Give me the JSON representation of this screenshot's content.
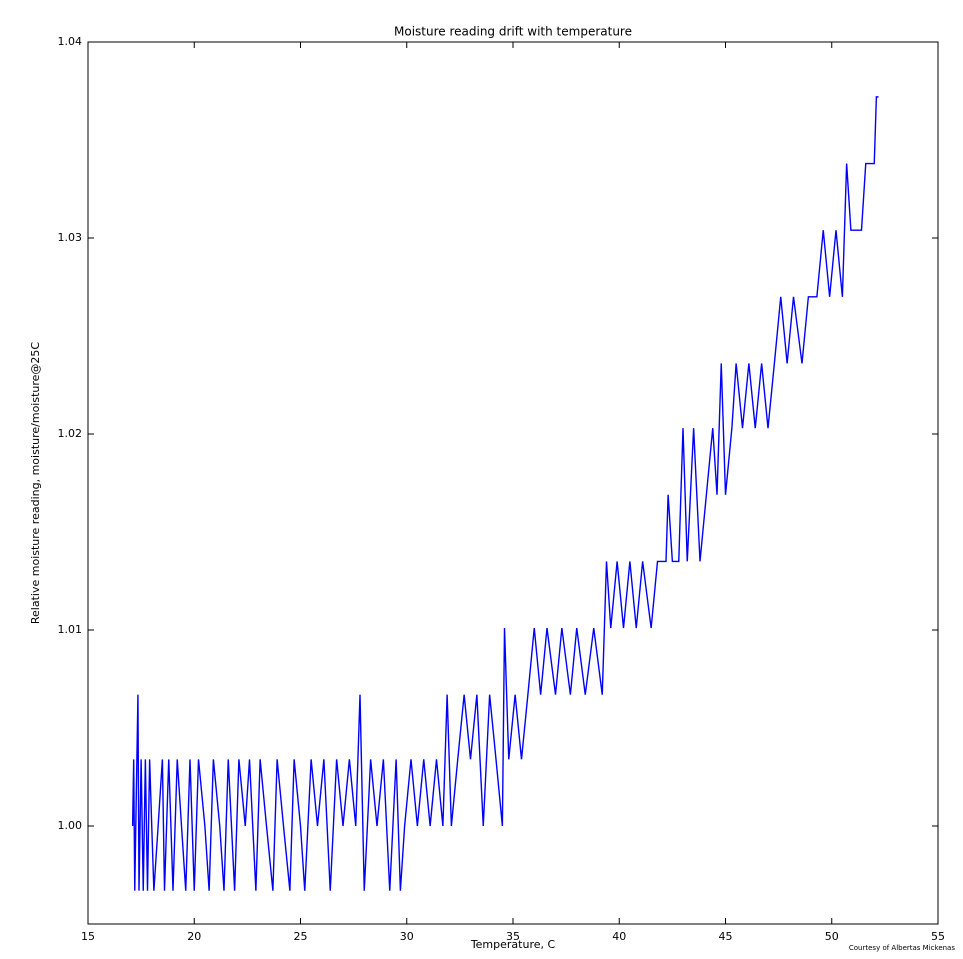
{
  "chart_data": {
    "type": "line",
    "title": "Moisture reading drift with temperature",
    "xlabel": "Temperature, C",
    "ylabel": "Relative moisture reading, moisture/moisture@25C",
    "annotation": "Courtesy of Albertas Mickenas",
    "xlim": [
      15,
      55
    ],
    "xticks": [
      15,
      20,
      25,
      30,
      35,
      40,
      45,
      50,
      55
    ],
    "ylim": [
      0.995,
      1.04
    ],
    "yticks": [
      {
        "value": 1.0,
        "label": "1.00"
      },
      {
        "value": 1.01,
        "label": "1.01"
      },
      {
        "value": 1.02,
        "label": "1.02"
      },
      {
        "value": 1.03,
        "label": "1.03"
      },
      {
        "value": 1.04,
        "label": "1.04"
      }
    ],
    "grid": false,
    "x": [
      17.1,
      17.15,
      17.2,
      17.3,
      17.35,
      17.4,
      17.5,
      17.6,
      17.7,
      17.8,
      17.9,
      18.0,
      18.1,
      18.3,
      18.5,
      18.6,
      18.8,
      19.0,
      19.2,
      19.4,
      19.6,
      19.8,
      20.0,
      20.2,
      20.5,
      20.7,
      20.9,
      21.2,
      21.4,
      21.6,
      21.9,
      22.1,
      22.4,
      22.6,
      22.9,
      23.1,
      23.4,
      23.7,
      23.9,
      24.2,
      24.5,
      24.7,
      25.0,
      25.2,
      25.5,
      25.8,
      26.1,
      26.4,
      26.7,
      27.0,
      27.3,
      27.6,
      27.8,
      28.0,
      28.3,
      28.6,
      28.9,
      29.2,
      29.5,
      29.7,
      29.9,
      30.2,
      30.5,
      30.8,
      31.1,
      31.4,
      31.7,
      31.9,
      32.1,
      32.4,
      32.7,
      33.0,
      33.3,
      33.6,
      33.9,
      34.2,
      34.5,
      34.6,
      34.8,
      35.1,
      35.4,
      35.7,
      36.0,
      36.3,
      36.6,
      37.0,
      37.3,
      37.7,
      38.0,
      38.4,
      38.8,
      39.2,
      39.4,
      39.6,
      39.9,
      40.2,
      40.5,
      40.8,
      41.1,
      41.5,
      41.8,
      42.2,
      42.3,
      42.5,
      42.8,
      43.0,
      43.2,
      43.5,
      43.8,
      44.1,
      44.4,
      44.6,
      44.8,
      45.0,
      45.3,
      45.5,
      45.8,
      46.1,
      46.4,
      46.7,
      47.0,
      47.3,
      47.6,
      47.9,
      48.2,
      48.6,
      48.9,
      49.3,
      49.6,
      49.9,
      50.2,
      50.5,
      50.7,
      50.9,
      51.4,
      51.6,
      52.0,
      52.1,
      52.2
    ],
    "series": [
      {
        "name": "moisture",
        "color": "#0000ff",
        "values": [
          1.0,
          1.0034,
          0.9967,
          1.0034,
          1.0067,
          0.9967,
          1.0034,
          0.9967,
          1.0034,
          0.9967,
          1.0034,
          1.0,
          0.9967,
          1.0,
          1.0034,
          0.9967,
          1.0034,
          0.9967,
          1.0034,
          1.0,
          0.9967,
          1.0034,
          0.9967,
          1.0034,
          1.0,
          0.9967,
          1.0034,
          1.0,
          0.9967,
          1.0034,
          0.9967,
          1.0034,
          1.0,
          1.0034,
          0.9967,
          1.0034,
          1.0,
          0.9967,
          1.0034,
          1.0,
          0.9967,
          1.0034,
          1.0,
          0.9967,
          1.0034,
          1.0,
          1.0034,
          0.9967,
          1.0034,
          1.0,
          1.0034,
          1.0,
          1.0067,
          0.9967,
          1.0034,
          1.0,
          1.0034,
          0.9967,
          1.0034,
          0.9967,
          1.0,
          1.0034,
          1.0,
          1.0034,
          1.0,
          1.0034,
          1.0,
          1.0067,
          1.0,
          1.0034,
          1.0067,
          1.0034,
          1.0067,
          1.0,
          1.0067,
          1.0034,
          1.0,
          1.0101,
          1.0034,
          1.0067,
          1.0034,
          1.0067,
          1.0101,
          1.0067,
          1.0101,
          1.0067,
          1.0101,
          1.0067,
          1.0101,
          1.0067,
          1.0101,
          1.0067,
          1.0135,
          1.0101,
          1.0135,
          1.0101,
          1.0135,
          1.0101,
          1.0135,
          1.0101,
          1.0135,
          1.0135,
          1.0169,
          1.0135,
          1.0135,
          1.0203,
          1.0135,
          1.0203,
          1.0135,
          1.0169,
          1.0203,
          1.0169,
          1.0236,
          1.0169,
          1.0203,
          1.0236,
          1.0203,
          1.0236,
          1.0203,
          1.0236,
          1.0203,
          1.0236,
          1.027,
          1.0236,
          1.027,
          1.0236,
          1.027,
          1.027,
          1.0304,
          1.027,
          1.0304,
          1.027,
          1.0338,
          1.0304,
          1.0304,
          1.0338,
          1.0338,
          1.0372,
          1.0372
        ]
      }
    ]
  }
}
